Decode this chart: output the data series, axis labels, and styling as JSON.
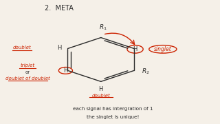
{
  "title": "2.  META",
  "bg_color": "#f5f0e8",
  "text_color": "#2b2b2b",
  "red_color": "#cc2200",
  "bottom_text1": "each signal has intergration of 1",
  "bottom_text2": "the singlet is unique!"
}
